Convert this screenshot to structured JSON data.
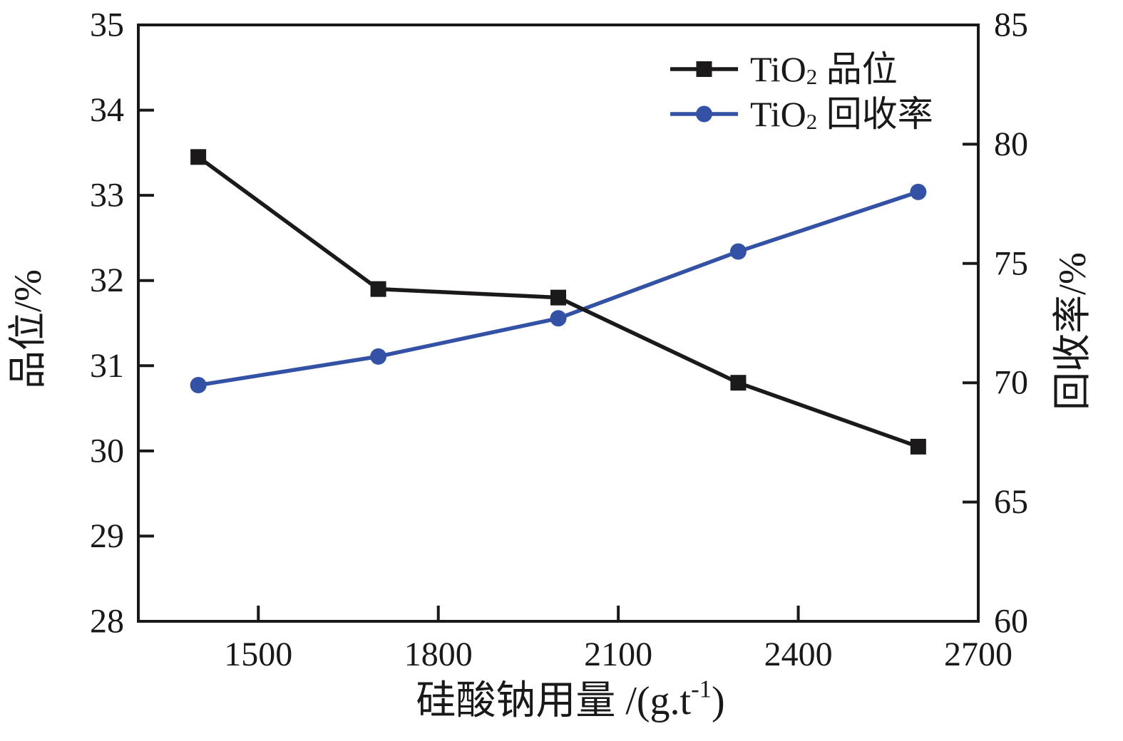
{
  "chart_data": {
    "type": "line",
    "title": "",
    "xlabel": "硅酸钠用量 /(g.t⁻¹)",
    "ylabel_left": "品位/%",
    "ylabel_right": "回收率/%",
    "xlim": [
      1300,
      2700
    ],
    "ylim_left": [
      28,
      35
    ],
    "ylim_right": [
      60,
      85
    ],
    "x_ticks": [
      1500,
      1800,
      2100,
      2400,
      2700
    ],
    "y_ticks_left": [
      28,
      29,
      30,
      31,
      32,
      33,
      34,
      35
    ],
    "y_ticks_right": [
      60,
      65,
      70,
      75,
      80,
      85
    ],
    "grid": false,
    "legend_position": "top-right-inside",
    "x": [
      1400,
      1700,
      2000,
      2300,
      2600
    ],
    "series": [
      {
        "name": "TiO₂ 品位",
        "axis": "left",
        "marker": "square",
        "color": "#1b191a",
        "values": [
          33.45,
          31.9,
          31.8,
          30.8,
          30.05
        ]
      },
      {
        "name": "TiO₂ 回收率",
        "axis": "right",
        "marker": "circle",
        "color": "#3452a5",
        "values": [
          69.9,
          71.1,
          72.7,
          75.5,
          78.0
        ]
      }
    ],
    "colors": {
      "axis": "#1a1819",
      "grade_series": "#1b191a",
      "recovery_series": "#3452a5",
      "background": "#ffffff"
    }
  }
}
